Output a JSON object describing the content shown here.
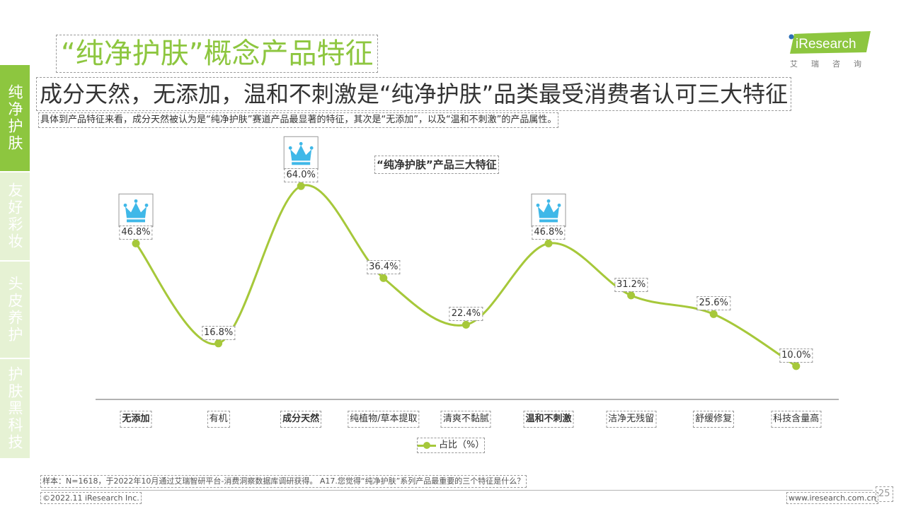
{
  "page": {
    "title": "“纯净护肤”概念产品特征",
    "headline": "成分天然，无添加，温和不刺激是“纯净护肤”品类最受消费者认可三大特征",
    "subhead": "具体到产品特征来看，成分天然被认为是“纯净护肤”赛道产品最显著的特征，其次是“无添加”，以及“温和不刺激”的产品属性。"
  },
  "sidebar": {
    "items": [
      {
        "label": "纯净护肤",
        "active": true
      },
      {
        "label": "友好彩妆",
        "active": false
      },
      {
        "label": "头皮养护",
        "active": false
      },
      {
        "label": "护肤黑科技",
        "active": false
      }
    ]
  },
  "logo": {
    "brand": "iResearch",
    "subtitle": "艾瑞咨询",
    "color": "#8dc63f"
  },
  "chart_data": {
    "type": "line",
    "title": "“纯净护肤”产品三大特征",
    "categories": [
      "无添加",
      "有机",
      "成分天然",
      "纯植物/草本提取",
      "清爽不黏腻",
      "温和不刺激",
      "洁净无残留",
      "舒缓修复",
      "科技含量高"
    ],
    "series": [
      {
        "name": "占比（%）",
        "values": [
          46.8,
          16.8,
          64.0,
          36.4,
          22.4,
          46.8,
          31.2,
          25.6,
          10.0
        ],
        "color": "#a6c83a"
      }
    ],
    "value_labels": [
      "46.8%",
      "16.8%",
      "64.0%",
      "36.4%",
      "22.4%",
      "46.8%",
      "31.2%",
      "25.6%",
      "10.0%"
    ],
    "highlighted_categories": [
      "无添加",
      "成分天然",
      "温和不刺激"
    ],
    "highlight_icon": "crown-icon",
    "highlight_color": "#3fb8e8",
    "ylim": [
      0,
      70
    ],
    "grid": false,
    "legend": "bottom-center",
    "curve": "smooth"
  },
  "footer": {
    "note": "样本：N=1618，于2022年10月通过艾瑞智研平台-消费洞察数据库调研获得。 A17.您觉得“纯净护肤”系列产品最重要的三个特征是什么？",
    "copyright": "©2022.11 iResearch Inc.",
    "site": "www.iresearch.com.cn",
    "page_number": "25"
  }
}
